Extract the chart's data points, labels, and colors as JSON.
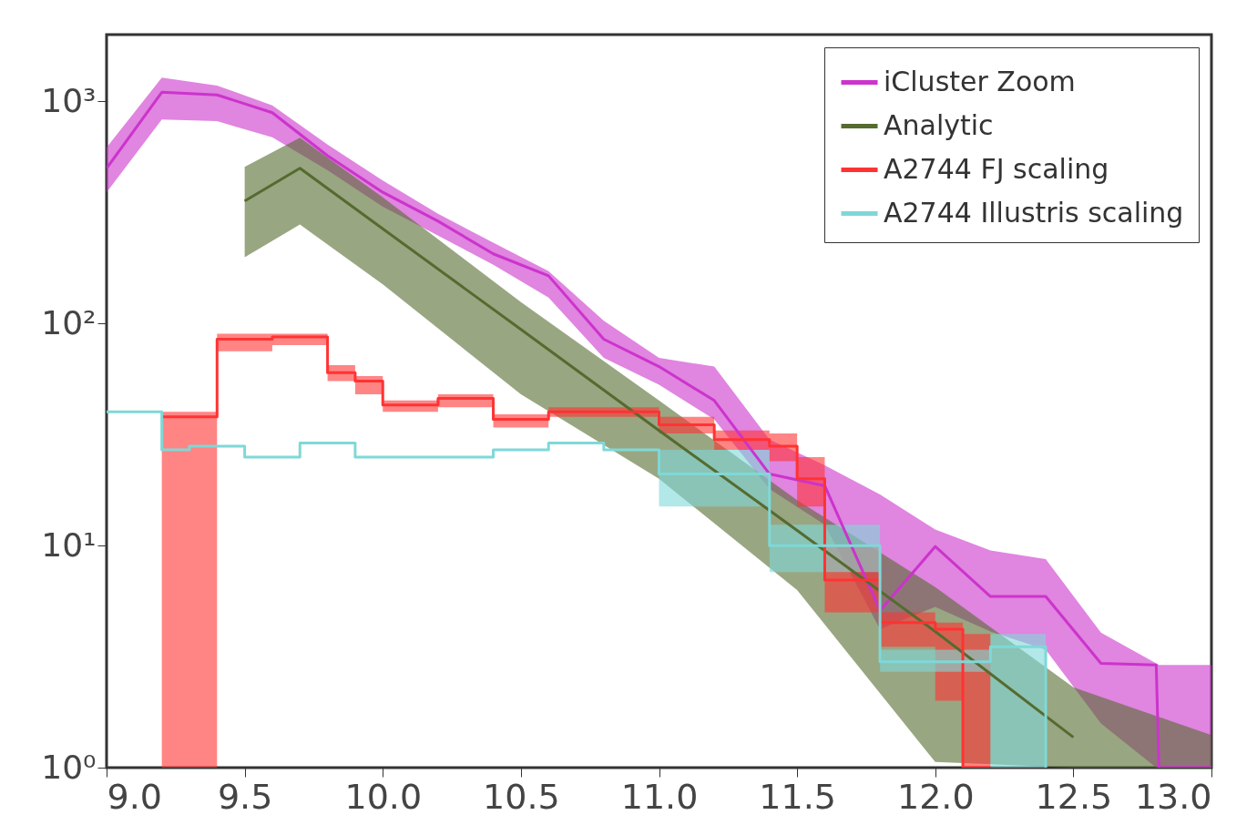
{
  "chart_data": {
    "type": "line",
    "log": "y",
    "legend": "top right",
    "xlim": [
      9,
      13
    ],
    "ylim": [
      1,
      2000
    ],
    "xticks": [
      {
        "value": 9,
        "label": "9.0"
      },
      {
        "value": 9.5,
        "label": "9.5"
      },
      {
        "value": 10,
        "label": "10.0"
      },
      {
        "value": 10.5,
        "label": "10.5"
      },
      {
        "value": 11,
        "label": "11.0"
      },
      {
        "value": 11.5,
        "label": "11.5"
      },
      {
        "value": 12,
        "label": "12.0"
      },
      {
        "value": 12.5,
        "label": "12.5"
      },
      {
        "value": 13,
        "label": "13.0"
      }
    ],
    "yticks": [
      {
        "value": 1,
        "label": "10⁰"
      },
      {
        "value": 10,
        "label": "10¹"
      },
      {
        "value": 100,
        "label": "10²"
      },
      {
        "value": 1000,
        "label": "10³"
      }
    ],
    "series": [
      {
        "name": "iCluster Zoom",
        "color": "#cc33cc",
        "x": [
          9.0,
          9.2,
          9.4,
          9.6,
          9.8,
          10.0,
          10.2,
          10.4,
          10.6,
          10.8,
          11.0,
          11.2,
          11.4,
          11.6,
          11.8,
          12.0,
          12.2,
          12.4,
          12.6,
          12.8,
          12.81,
          13.0
        ],
        "values": [
          500,
          1100,
          1070,
          890,
          570,
          390,
          289,
          206,
          164,
          85,
          64,
          45,
          21,
          18.6,
          5.1,
          9.9,
          5.9,
          5.9,
          2.95,
          2.9,
          1,
          1
        ],
        "lower": [
          390,
          830,
          815,
          690,
          490,
          336,
          249,
          184,
          131,
          70,
          53,
          37,
          18,
          12.4,
          4.2,
          5.3,
          4.1,
          3.4,
          1.58,
          1,
          1,
          1
        ],
        "upper": [
          620,
          1280,
          1180,
          960,
          640,
          440,
          312,
          231,
          172,
          103,
          70,
          64,
          30,
          23,
          17,
          11.8,
          9.5,
          8.7,
          4.05,
          2.95,
          2.9,
          2.9
        ]
      },
      {
        "name": "Analytic",
        "color": "#556b2f",
        "x": [
          9.5,
          9.7,
          10.0,
          10.5,
          11.0,
          11.5,
          12.0,
          12.5,
          13.0
        ],
        "values": [
          356,
          500,
          267,
          94,
          33,
          11.7,
          4.1,
          1.37,
          null
        ],
        "lower": [
          199,
          279,
          150,
          48,
          20,
          6.3,
          1.06,
          1,
          1
        ],
        "upper": [
          508,
          687,
          370,
          125,
          45,
          16,
          6.5,
          2.3,
          1.4
        ]
      },
      {
        "name": "A2744 FJ scaling",
        "type": "step",
        "color": "#ff3333",
        "x": [
          9.2,
          9.4,
          9.6,
          9.8,
          9.9,
          10.0,
          10.2,
          10.4,
          10.6,
          11.0,
          11.2,
          11.4,
          11.5,
          11.6,
          11.8,
          12.0,
          12.1,
          12.2
        ],
        "values": [
          38,
          85,
          87,
          60,
          55,
          43,
          46,
          37,
          40,
          35,
          30,
          28,
          20,
          7,
          4.5,
          4.2,
          1,
          1
        ],
        "lower": [
          1,
          75,
          80,
          55,
          48,
          40,
          42,
          34,
          38,
          32,
          27,
          24,
          15,
          5,
          3.5,
          2,
          1,
          1
        ],
        "upper": [
          40,
          90,
          90,
          65,
          58,
          45,
          48,
          39,
          42,
          38,
          33,
          32,
          25,
          10,
          5,
          4.5,
          4,
          4
        ]
      },
      {
        "name": "A2744 Illustris scaling",
        "type": "step",
        "color": "#7fd8d8",
        "x": [
          9.0,
          9.2,
          9.3,
          9.5,
          9.7,
          9.9,
          10.4,
          10.6,
          10.8,
          11.0,
          11.4,
          11.8,
          12.2,
          12.4
        ],
        "values": [
          40,
          27,
          28,
          25,
          29,
          25,
          27,
          29,
          27,
          21,
          10,
          3,
          3.5,
          1
        ],
        "lower": [
          40,
          27,
          28,
          25,
          29,
          25,
          27,
          29,
          27,
          15,
          7.6,
          2.7,
          1,
          1
        ],
        "upper": [
          40,
          27,
          28,
          25,
          29,
          25,
          27,
          29,
          27,
          27,
          12.4,
          3.4,
          4,
          1
        ]
      }
    ]
  }
}
